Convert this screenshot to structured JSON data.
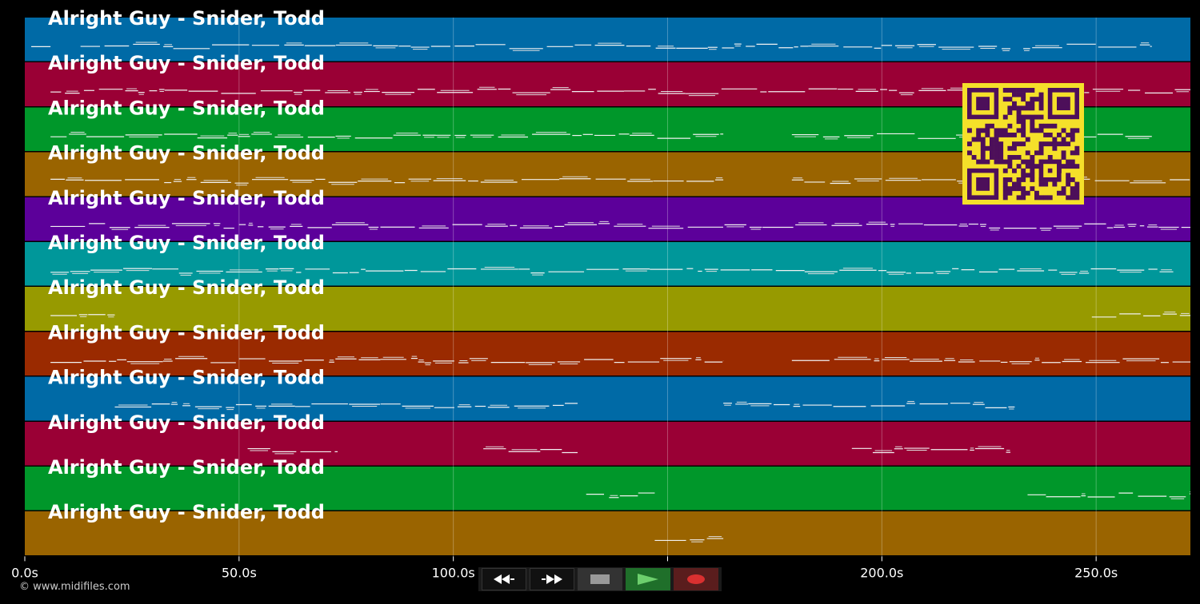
{
  "track_title": "Alright Guy - Snider, Todd",
  "duration_s": 272,
  "tracks": [
    {
      "color": "#006aa6",
      "label": "Alright Guy - Snider, Todd",
      "segments": [
        [
          1.5,
          6
        ],
        [
          13,
          230
        ],
        [
          233,
          263
        ]
      ]
    },
    {
      "color": "#9a0035",
      "label": "Alright Guy - Snider, Todd",
      "segments": [
        [
          6,
          272
        ]
      ]
    },
    {
      "color": "#00972a",
      "label": "Alright Guy - Snider, Todd",
      "segments": [
        [
          6,
          163
        ],
        [
          179,
          263
        ]
      ]
    },
    {
      "color": "#9a6400",
      "label": "Alright Guy - Snider, Todd",
      "segments": [
        [
          6,
          163
        ],
        [
          179,
          272
        ]
      ]
    },
    {
      "color": "#5c009a",
      "label": "Alright Guy - Snider, Todd",
      "segments": [
        [
          6,
          272
        ]
      ]
    },
    {
      "color": "#00979a",
      "label": "Alright Guy - Snider, Todd",
      "segments": [
        [
          6,
          268
        ]
      ]
    },
    {
      "color": "#979a00",
      "label": "Alright Guy - Snider, Todd",
      "segments": [
        [
          6,
          21
        ],
        [
          249,
          272
        ]
      ]
    },
    {
      "color": "#9a2a00",
      "label": "Alright Guy - Snider, Todd",
      "segments": [
        [
          6,
          163
        ],
        [
          179,
          272
        ]
      ]
    },
    {
      "color": "#006aa6",
      "label": "Alright Guy - Snider, Todd",
      "segments": [
        [
          21,
          129
        ],
        [
          163,
          231
        ]
      ]
    },
    {
      "color": "#9a0035",
      "label": "Alright Guy - Snider, Todd",
      "segments": [
        [
          52,
          73
        ],
        [
          107,
          129
        ],
        [
          193,
          230
        ]
      ]
    },
    {
      "color": "#00972a",
      "label": "Alright Guy - Snider, Todd",
      "segments": [
        [
          131,
          147
        ],
        [
          234,
          272
        ]
      ]
    },
    {
      "color": "#9a6400",
      "label": "Alright Guy - Snider, Todd",
      "segments": [
        [
          147,
          163
        ]
      ]
    }
  ],
  "axis": {
    "ticks": [
      {
        "value": 0,
        "label": "0.0s"
      },
      {
        "value": 50,
        "label": "50.0s"
      },
      {
        "value": 100,
        "label": "100.0s"
      },
      {
        "value": 150,
        "label": "150.0s"
      },
      {
        "value": 200,
        "label": "200.0s"
      },
      {
        "value": 250,
        "label": "250.0s"
      }
    ]
  },
  "copyright": "© www.midifiles.com",
  "controls": [
    {
      "name": "rewind-button",
      "icon": "rewind-icon"
    },
    {
      "name": "fast-forward-button",
      "icon": "fast-forward-icon"
    },
    {
      "name": "stop-button",
      "icon": "stop-icon"
    },
    {
      "name": "play-button",
      "icon": "play-icon"
    },
    {
      "name": "record-button",
      "icon": "record-icon"
    }
  ],
  "qr_code": {
    "color_fg": "#4d0f5a",
    "color_bg": "#f5e02a"
  }
}
